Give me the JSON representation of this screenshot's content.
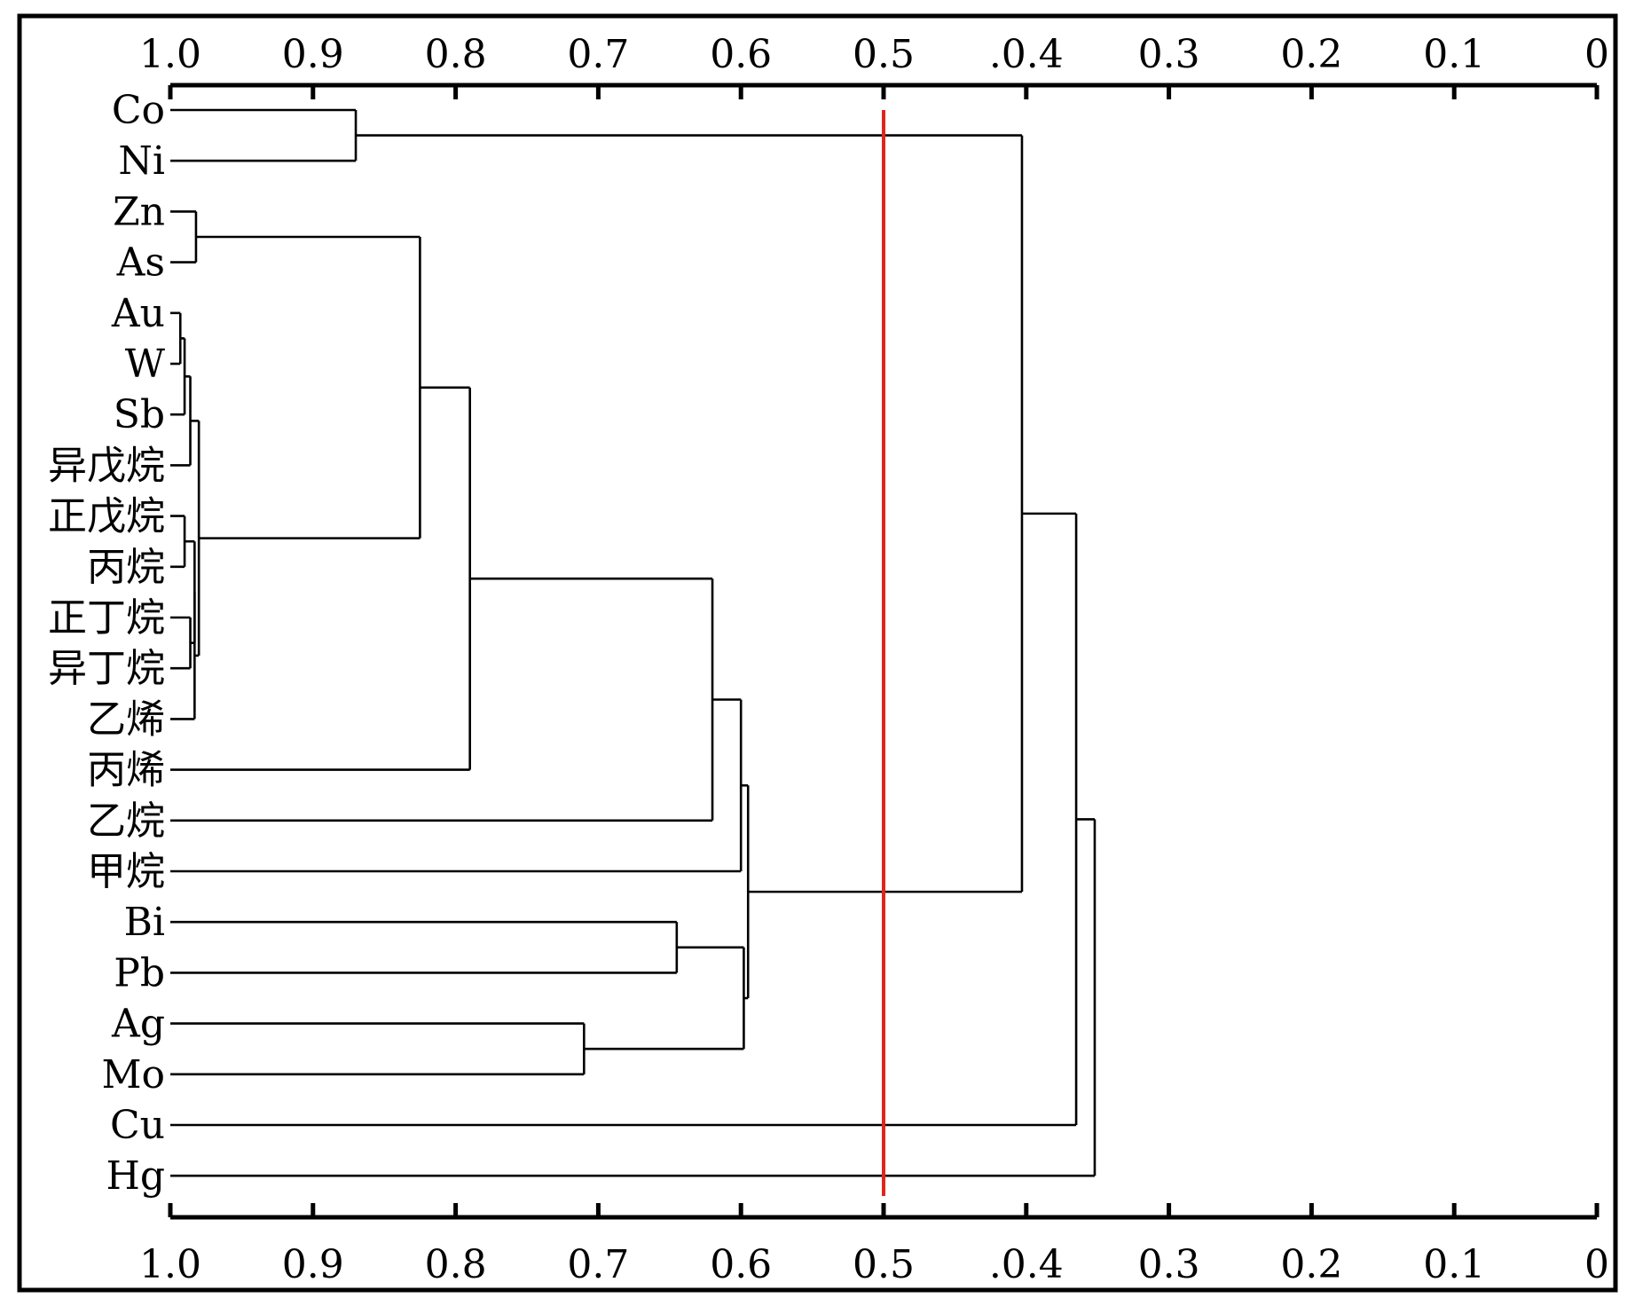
{
  "chart_data": {
    "type": "dendrogram",
    "orientation": "horizontal",
    "xlim": [
      1.0,
      0
    ],
    "ticks": [
      1.0,
      0.9,
      0.8,
      0.7,
      0.6,
      0.5,
      0.4,
      0.3,
      0.2,
      0.1,
      0
    ],
    "tick_labels": [
      "1.0",
      "0.9",
      "0.8",
      "0.7",
      "0.6",
      "0.5",
      ".0.4",
      "0.3",
      "0.2",
      "0.1",
      "0"
    ],
    "leaves": [
      "Co",
      "Ni",
      "Zn",
      "As",
      "Au",
      "W",
      "Sb",
      "异戊烷",
      "正戊烷",
      "丙烷",
      "正丁烷",
      "异丁烷",
      "乙烯",
      "丙烯",
      "乙烷",
      "甲烷",
      "Bi",
      "Pb",
      "Ag",
      "Mo",
      "Cu",
      "Hg"
    ],
    "merges": [
      {
        "a": "L0",
        "b": "L1",
        "height": 0.87
      },
      {
        "a": "L2",
        "b": "L3",
        "height": 0.982
      },
      {
        "a": "L4",
        "b": "L5",
        "height": 0.993
      },
      {
        "a": "M2",
        "b": "L6",
        "height": 0.99
      },
      {
        "a": "M3",
        "b": "L7",
        "height": 0.986
      },
      {
        "a": "L8",
        "b": "L9",
        "height": 0.99
      },
      {
        "a": "L10",
        "b": "L11",
        "height": 0.986
      },
      {
        "a": "M5",
        "b": "M6",
        "height": 0.983
      },
      {
        "a": "M7",
        "b": "L12",
        "height": 0.983
      },
      {
        "a": "M4",
        "b": "M8",
        "height": 0.98
      },
      {
        "a": "M1",
        "b": "M9",
        "height": 0.825
      },
      {
        "a": "M10",
        "b": "L13",
        "height": 0.79
      },
      {
        "a": "M11",
        "b": "L14",
        "height": 0.62
      },
      {
        "a": "M12",
        "b": "L15",
        "height": 0.6
      },
      {
        "a": "L16",
        "b": "L17",
        "height": 0.645
      },
      {
        "a": "L18",
        "b": "L19",
        "height": 0.71
      },
      {
        "a": "M14",
        "b": "M15",
        "height": 0.598
      },
      {
        "a": "M13",
        "b": "M16",
        "height": 0.595
      },
      {
        "a": "M0",
        "b": "M17",
        "height": 0.403
      },
      {
        "a": "M18",
        "b": "L20",
        "height": 0.365
      },
      {
        "a": "M19",
        "b": "L21",
        "height": 0.352
      }
    ],
    "threshold": 0.5,
    "threshold_color": "#e0261b",
    "line_color": "#000000"
  }
}
